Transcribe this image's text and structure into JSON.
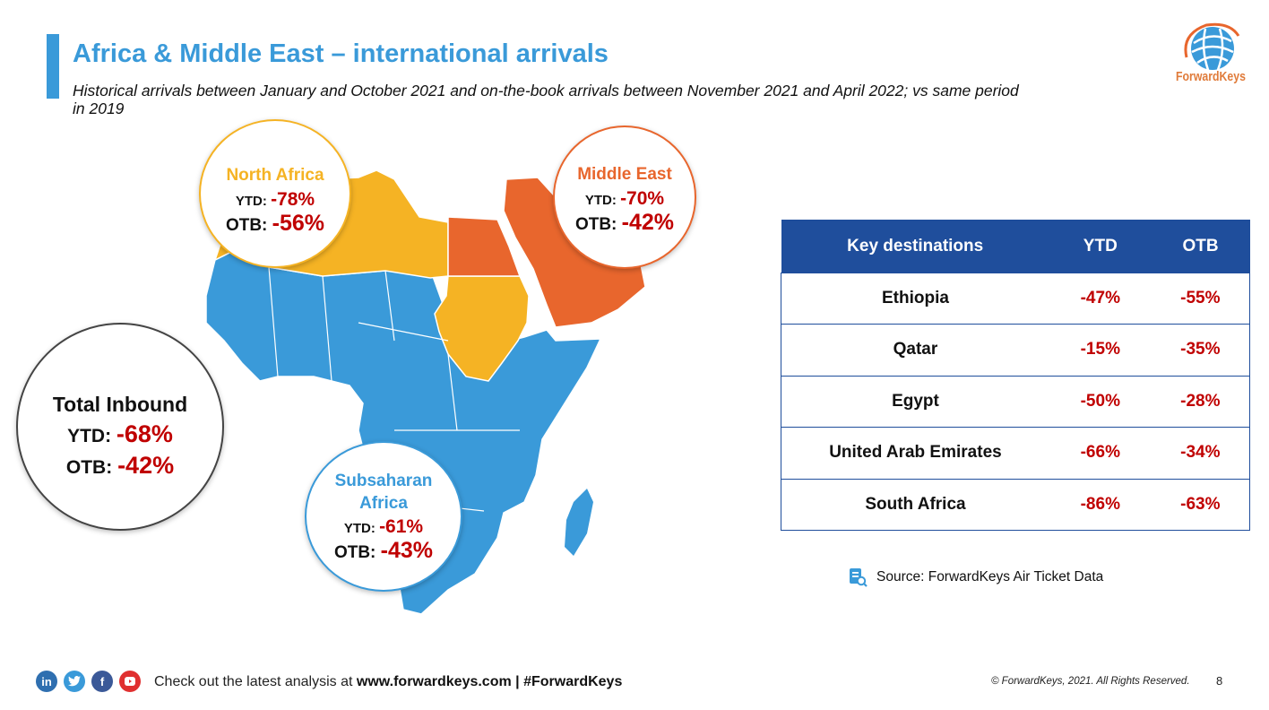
{
  "header": {
    "title": "Africa & Middle East – international arrivals",
    "subtitle": "Historical arrivals between January and October 2021 and on-the-book arrivals between November 2021 and April 2022; vs same period in 2019"
  },
  "logo": {
    "text": "ForwardKeys"
  },
  "colors": {
    "accent_blue": "#3a9ad9",
    "north_africa": "#f5b324",
    "middle_east": "#e8662d",
    "table_header": "#1f4e9c",
    "negative_value": "#c00000"
  },
  "regions": {
    "north_africa": {
      "name": "North Africa",
      "ytd_label": "YTD:",
      "ytd": "-78%",
      "otb_label": "OTB:",
      "otb": "-56%"
    },
    "middle_east": {
      "name": "Middle East",
      "ytd_label": "YTD:",
      "ytd": "-70%",
      "otb_label": "OTB:",
      "otb": "-42%"
    },
    "total_inbound": {
      "name": "Total Inbound",
      "ytd_label": "YTD:",
      "ytd": "-68%",
      "otb_label": "OTB:",
      "otb": "-42%"
    },
    "subsaharan": {
      "name_line1": "Subsaharan",
      "name_line2": "Africa",
      "ytd_label": "YTD:",
      "ytd": "-61%",
      "otb_label": "OTB:",
      "otb": "-43%"
    }
  },
  "table": {
    "headers": [
      "Key destinations",
      "YTD",
      "OTB"
    ],
    "rows": [
      {
        "destination": "Ethiopia",
        "ytd": "-47%",
        "otb": "-55%"
      },
      {
        "destination": "Qatar",
        "ytd": "-15%",
        "otb": "-35%"
      },
      {
        "destination": "Egypt",
        "ytd": "-50%",
        "otb": "-28%"
      },
      {
        "destination": "United Arab Emirates",
        "ytd": "-66%",
        "otb": "-34%"
      },
      {
        "destination": "South Africa",
        "ytd": "-86%",
        "otb": "-63%"
      }
    ]
  },
  "source": {
    "text": "Source: ForwardKeys Air Ticket Data",
    "icon": "document-search-icon"
  },
  "footer": {
    "social_icons": [
      "linkedin-icon",
      "twitter-icon",
      "facebook-icon",
      "youtube-icon"
    ],
    "prefix": "Check out the latest analysis at ",
    "link": "www.forwardkeys.com | #ForwardKeys",
    "copyright": "© ForwardKeys, 2021. All Rights Reserved.",
    "page_number": "8"
  }
}
